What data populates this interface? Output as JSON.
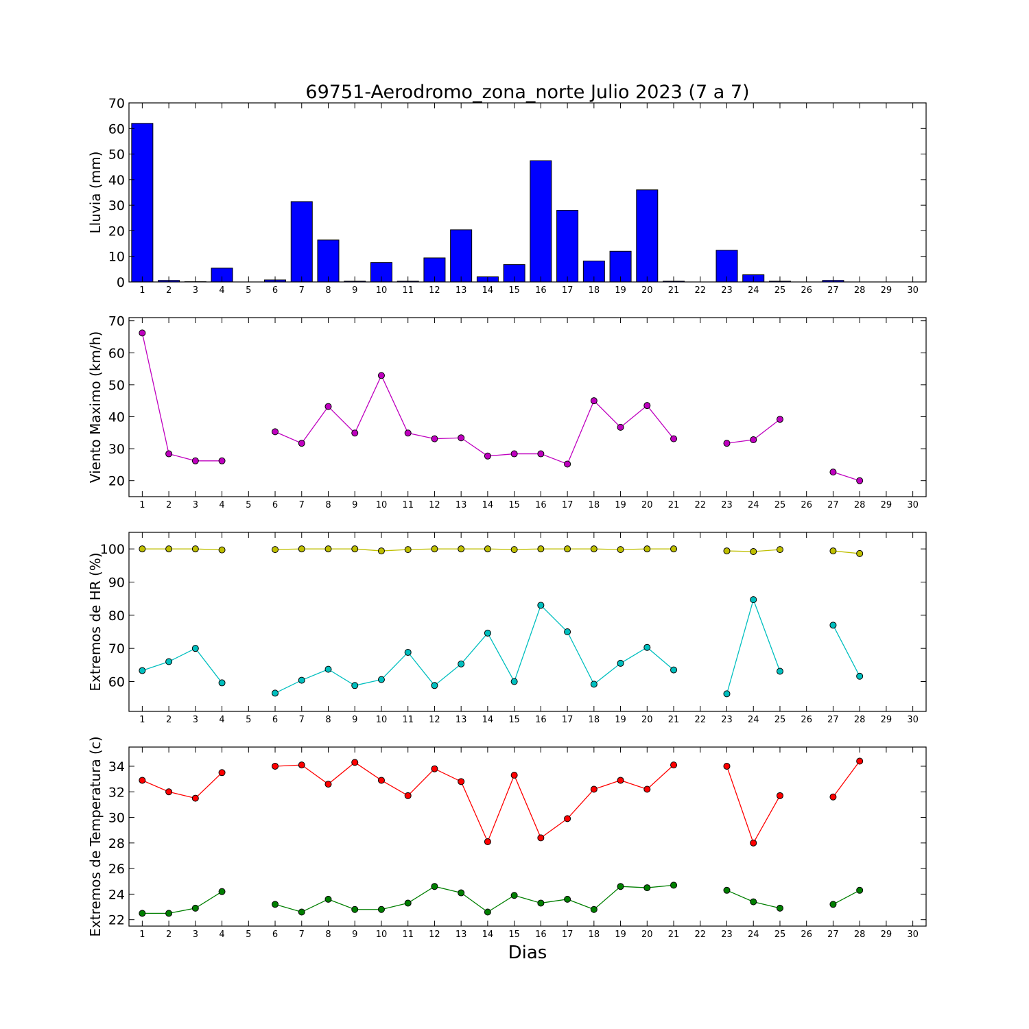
{
  "figure": {
    "title": "69751-Aerodromo_zona_norte Julio 2023  (7 a 7)",
    "xlabel": "Dias"
  },
  "chart_data": [
    {
      "id": "rain",
      "type": "bar",
      "ylabel": "Lluvia (mm)",
      "xlim": [
        0.5,
        30.5
      ],
      "ylim": [
        0,
        70
      ],
      "yticks": [
        0,
        10,
        20,
        30,
        40,
        50,
        60,
        70
      ],
      "xticks": [
        1,
        2,
        3,
        4,
        5,
        6,
        7,
        8,
        9,
        10,
        11,
        12,
        13,
        14,
        15,
        16,
        17,
        18,
        19,
        20,
        21,
        22,
        23,
        24,
        25,
        26,
        27,
        28,
        29,
        30
      ],
      "color": "#0000ff",
      "series": [
        {
          "days": [
            1,
            2,
            3,
            4,
            5,
            6,
            7,
            8,
            9,
            10,
            11,
            12,
            13,
            14,
            15,
            16,
            17,
            18,
            19,
            20,
            21,
            22,
            23,
            24,
            25,
            26,
            27,
            28,
            29,
            30
          ],
          "values": [
            62,
            0.6,
            0.1,
            5.4,
            0,
            0.8,
            31.4,
            16.4,
            0.3,
            7.6,
            0.3,
            9.4,
            20.4,
            2.0,
            6.8,
            47.4,
            28.0,
            8.2,
            12.0,
            36.0,
            0.3,
            0,
            12.4,
            2.8,
            0.3,
            0,
            0.6,
            0,
            0,
            0
          ]
        }
      ]
    },
    {
      "id": "wind",
      "type": "line",
      "ylabel": "Viento Maximo (km/h)",
      "xlim": [
        0.5,
        30.5
      ],
      "ylim": [
        15,
        71
      ],
      "yticks": [
        20,
        30,
        40,
        50,
        60,
        70
      ],
      "xticks": [
        1,
        2,
        3,
        4,
        5,
        6,
        7,
        8,
        9,
        10,
        11,
        12,
        13,
        14,
        15,
        16,
        17,
        18,
        19,
        20,
        21,
        22,
        23,
        24,
        25,
        26,
        27,
        28,
        29,
        30
      ],
      "series": [
        {
          "color": "#bf00bf",
          "days": [
            1,
            2,
            3,
            4,
            5,
            6,
            7,
            8,
            9,
            10,
            11,
            12,
            13,
            14,
            15,
            16,
            17,
            18,
            19,
            20,
            21,
            22,
            23,
            24,
            25,
            26,
            27,
            28
          ],
          "values": [
            66.2,
            28.4,
            26.2,
            26.2,
            null,
            35.3,
            31.7,
            43.2,
            34.9,
            52.9,
            34.9,
            33.1,
            33.4,
            27.7,
            28.4,
            28.4,
            25.2,
            45.0,
            36.7,
            43.5,
            33.1,
            null,
            31.7,
            32.8,
            39.2,
            null,
            22.7,
            20.0
          ]
        }
      ]
    },
    {
      "id": "humidity",
      "type": "line",
      "ylabel": "Extremos de HR (%)",
      "xlim": [
        0.5,
        30.5
      ],
      "ylim": [
        51,
        105
      ],
      "yticks": [
        60,
        70,
        80,
        90,
        100
      ],
      "xticks": [
        1,
        2,
        3,
        4,
        5,
        6,
        7,
        8,
        9,
        10,
        11,
        12,
        13,
        14,
        15,
        16,
        17,
        18,
        19,
        20,
        21,
        22,
        23,
        24,
        25,
        26,
        27,
        28,
        29,
        30
      ],
      "series": [
        {
          "color": "#bfbf00",
          "days": [
            1,
            2,
            3,
            4,
            5,
            6,
            7,
            8,
            9,
            10,
            11,
            12,
            13,
            14,
            15,
            16,
            17,
            18,
            19,
            20,
            21,
            22,
            23,
            24,
            25,
            26,
            27,
            28
          ],
          "values": [
            100,
            100,
            100,
            99.7,
            null,
            99.8,
            100,
            100,
            100,
            99.4,
            99.8,
            100,
            100,
            100,
            99.8,
            100,
            100,
            100,
            99.8,
            100,
            100,
            null,
            99.4,
            99.2,
            99.8,
            null,
            99.4,
            98.6
          ]
        },
        {
          "color": "#00bfbf",
          "days": [
            1,
            2,
            3,
            4,
            5,
            6,
            7,
            8,
            9,
            10,
            11,
            12,
            13,
            14,
            15,
            16,
            17,
            18,
            19,
            20,
            21,
            22,
            23,
            24,
            25,
            26,
            27,
            28
          ],
          "values": [
            63.3,
            66.0,
            70.0,
            59.6,
            null,
            56.5,
            60.4,
            63.7,
            58.8,
            60.6,
            68.8,
            58.8,
            65.3,
            74.6,
            60.0,
            83.0,
            75.0,
            59.2,
            65.5,
            70.3,
            63.5,
            null,
            56.3,
            84.7,
            63.1,
            null,
            77.0,
            61.6
          ]
        }
      ]
    },
    {
      "id": "temperature",
      "type": "line",
      "ylabel": "Extremos de Temperatura (c)",
      "xlim": [
        0.5,
        30.5
      ],
      "ylim": [
        21.5,
        35.5
      ],
      "yticks": [
        22,
        24,
        26,
        28,
        30,
        32,
        34
      ],
      "xticks": [
        1,
        2,
        3,
        4,
        5,
        6,
        7,
        8,
        9,
        10,
        11,
        12,
        13,
        14,
        15,
        16,
        17,
        18,
        19,
        20,
        21,
        22,
        23,
        24,
        25,
        26,
        27,
        28,
        29,
        30
      ],
      "series": [
        {
          "color": "#ff0000",
          "days": [
            1,
            2,
            3,
            4,
            5,
            6,
            7,
            8,
            9,
            10,
            11,
            12,
            13,
            14,
            15,
            16,
            17,
            18,
            19,
            20,
            21,
            22,
            23,
            24,
            25,
            26,
            27,
            28
          ],
          "values": [
            32.9,
            32.0,
            31.5,
            33.5,
            null,
            34.0,
            34.1,
            32.6,
            34.3,
            32.9,
            31.7,
            33.8,
            32.8,
            28.1,
            33.3,
            28.4,
            29.9,
            32.2,
            32.9,
            32.2,
            34.1,
            null,
            34.0,
            28.0,
            31.7,
            null,
            31.6,
            34.4
          ]
        },
        {
          "color": "#007f00",
          "days": [
            1,
            2,
            3,
            4,
            5,
            6,
            7,
            8,
            9,
            10,
            11,
            12,
            13,
            14,
            15,
            16,
            17,
            18,
            19,
            20,
            21,
            22,
            23,
            24,
            25,
            26,
            27,
            28
          ],
          "values": [
            22.5,
            22.5,
            22.9,
            24.2,
            null,
            23.2,
            22.6,
            23.6,
            22.8,
            22.8,
            23.3,
            24.6,
            24.1,
            22.6,
            23.9,
            23.3,
            23.6,
            22.8,
            24.6,
            24.5,
            24.7,
            null,
            24.3,
            23.4,
            22.9,
            null,
            23.2,
            24.3
          ]
        }
      ]
    }
  ]
}
